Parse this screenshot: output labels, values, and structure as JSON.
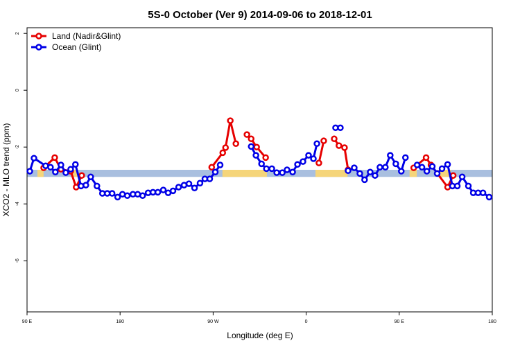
{
  "chart_data": {
    "type": "line",
    "title": "5S-0 October (Ver 9)   2014-09-06 to 2018-12-01",
    "x_label": "Longitude (deg E)",
    "y_label": "XCO2 - MLO trend (ppm)",
    "xlim": [
      90,
      540
    ],
    "ylim": [
      -7.8,
      2.2
    ],
    "xticks": [
      {
        "value": 90,
        "label": "90 E"
      },
      180,
      {
        "value": 270,
        "label": "90 W"
      },
      {
        "value": 360,
        "label": "0"
      },
      {
        "value": 450,
        "label": "90 E"
      },
      {
        "value": 540,
        "label": "180"
      }
    ],
    "yticks": [
      2,
      0,
      -2,
      -4,
      -6
    ],
    "legend": "top-left",
    "band": {
      "range": [
        -3.05,
        -2.8
      ],
      "color": "#a9bfdf",
      "land_color": "#f5d57a",
      "land_spans": [
        [
          100,
          106
        ],
        [
          134,
          139
        ],
        [
          279,
          322
        ],
        [
          369,
          400
        ],
        [
          460,
          467
        ],
        [
          487,
          500
        ]
      ]
    },
    "series": [
      {
        "name": "Land (Nadir&Glint)",
        "color": "#e60000",
        "x": [
          106.1,
          116.8,
          122.8,
          132.2,
          137.5,
          142.9,
          null,
          268.6,
          279.3,
          282,
          286.6,
          292,
          null,
          302.7,
          306.8,
          312.1,
          320.8,
          null,
          372.3,
          377,
          null,
          387.1,
          391.7,
          397.1,
          400.5,
          null,
          464,
          476,
          480.7,
          496.8,
          502.2
        ],
        "values": [
          -2.73,
          -2.37,
          -2.78,
          -2.85,
          -3.41,
          -3,
          null,
          -2.71,
          -2.2,
          -2.02,
          -1.07,
          -1.88,
          null,
          -1.56,
          -1.71,
          -2,
          -2.37,
          null,
          -2.56,
          -1.78,
          null,
          -1.71,
          -1.95,
          -2.02,
          -2.8,
          null,
          -2.73,
          -2.37,
          -2.63,
          -3.41,
          -3
        ]
      },
      {
        "name": "Ocean (Glint)",
        "color": "#0000e6",
        "x": [
          92.7,
          96.7,
          108,
          112.7,
          117.4,
          122.8,
          127.5,
          132.2,
          136.8,
          142.2,
          146.9,
          151.6,
          157.6,
          162.9,
          167.6,
          172.3,
          177.6,
          182.3,
          187,
          192.4,
          197,
          201.8,
          207.1,
          211.8,
          216.5,
          221.8,
          226.5,
          231.2,
          236.6,
          241.9,
          246.6,
          252,
          257.3,
          262,
          266.7,
          272.1,
          276.8,
          null,
          306.8,
          311.4,
          316.8,
          321.5,
          326.8,
          331.5,
          336.9,
          341.5,
          346.9,
          351.6,
          356.9,
          362.3,
          367,
          370.4,
          null,
          388.4,
          393.1,
          null,
          400.5,
          406.5,
          411.9,
          416.5,
          421.9,
          426.6,
          431.3,
          436.6,
          441.3,
          446.7,
          452,
          456,
          null,
          467.3,
          472,
          476.7,
          482,
          486.7,
          491.4,
          496.8,
          501.5,
          506.2,
          510.9,
          516.9,
          521.6,
          526.3,
          531,
          537
        ],
        "values": [
          -2.85,
          -2.39,
          -2.66,
          -2.71,
          -2.88,
          -2.63,
          -2.9,
          -2.78,
          -2.61,
          -3.37,
          -3.34,
          -3.05,
          -3.37,
          -3.63,
          -3.63,
          -3.63,
          -3.76,
          -3.66,
          -3.71,
          -3.66,
          -3.66,
          -3.71,
          -3.61,
          -3.59,
          -3.59,
          -3.51,
          -3.61,
          -3.54,
          -3.41,
          -3.34,
          -3.29,
          -3.44,
          -3.27,
          -3.12,
          -3.12,
          -2.88,
          -2.63,
          null,
          -1.98,
          -2.29,
          -2.59,
          -2.76,
          -2.76,
          -2.9,
          -2.9,
          -2.8,
          -2.88,
          -2.61,
          -2.51,
          -2.29,
          -2.41,
          -1.88,
          null,
          -1.32,
          -1.32,
          null,
          -2.83,
          -2.73,
          -2.93,
          -3.15,
          -2.88,
          -3,
          -2.71,
          -2.71,
          -2.29,
          -2.59,
          -2.85,
          -2.37,
          null,
          -2.63,
          -2.71,
          -2.85,
          -2.68,
          -2.93,
          -2.76,
          -2.61,
          -3.37,
          -3.37,
          -3.05,
          -3.37,
          -3.61,
          -3.61,
          -3.61,
          -3.76
        ]
      }
    ]
  }
}
